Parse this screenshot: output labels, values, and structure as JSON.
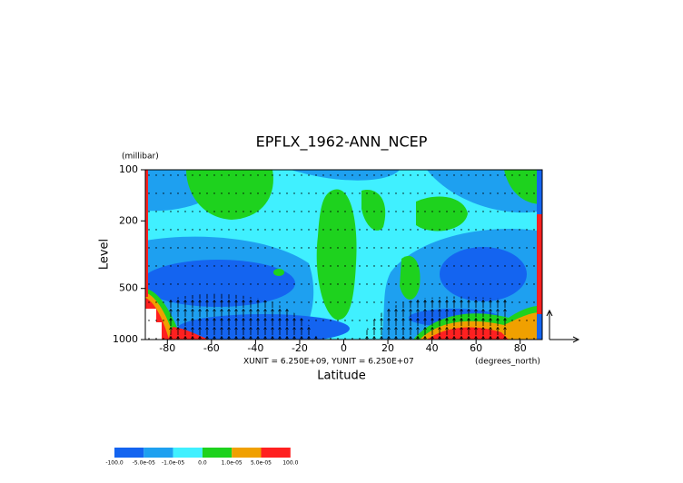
{
  "chart_data": {
    "type": "contour",
    "title": "EPFLX_1962-ANN_NCEP",
    "ylabel": "Level",
    "yunit": "(millibar)",
    "xlabel": "Latitude",
    "xunit": "(degrees_north)",
    "annotation": "XUNIT = 6.250E+09, YUNIT = 6.250E+07",
    "xlim": [
      -90,
      90
    ],
    "xticks": [
      -80,
      -60,
      -40,
      -20,
      0,
      20,
      40,
      60,
      80
    ],
    "ylim": [
      1000,
      100
    ],
    "yticks": [
      100,
      200,
      500,
      1000
    ],
    "ylog": true,
    "colorbar": {
      "levels": [
        {
          "value": -100,
          "label": "-100.0"
        },
        {
          "value": -5e-05,
          "label": "-5.0e-05"
        },
        {
          "value": -1e-05,
          "label": "-1.0e-05"
        },
        {
          "value": 0,
          "label": "0.0"
        },
        {
          "value": 1e-05,
          "label": "1.0e-05"
        },
        {
          "value": 5e-05,
          "label": "5.0e-05"
        },
        {
          "value": 100,
          "label": "100.0"
        }
      ],
      "colors": [
        "#1464f0",
        "#1ea0f0",
        "#40f0ff",
        "#1ed21e",
        "#f0a000",
        "#ff2020"
      ]
    }
  }
}
